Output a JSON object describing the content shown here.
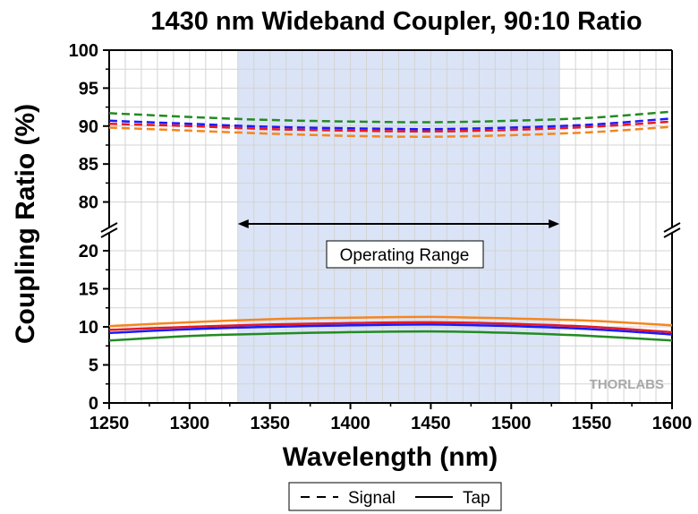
{
  "chart_data": {
    "type": "line",
    "title": "1430 nm Wideband Coupler, 90:10 Ratio",
    "xlabel": "Wavelength (nm)",
    "ylabel": "Coupling Ratio (%)",
    "xlim": [
      1250,
      1600
    ],
    "x_ticks": [
      1250,
      1300,
      1350,
      1400,
      1450,
      1500,
      1550,
      1600
    ],
    "y_ticks_upper": [
      80,
      85,
      90,
      95,
      100
    ],
    "y_ticks_lower": [
      0,
      5,
      10,
      15,
      20
    ],
    "ylim_upper": [
      77,
      100
    ],
    "ylim_lower": [
      0,
      22
    ],
    "axis_break": true,
    "grid": true,
    "highlight": {
      "x_range": [
        1330,
        1530
      ],
      "color": "#dbe4f6",
      "label": "Operating Range"
    },
    "x": [
      1250,
      1300,
      1350,
      1400,
      1450,
      1500,
      1550,
      1600
    ],
    "series": [
      {
        "group": "Signal",
        "style": "dashed",
        "color": "#228b22",
        "values": [
          91.7,
          91.2,
          90.8,
          90.6,
          90.5,
          90.7,
          91.1,
          91.9
        ]
      },
      {
        "group": "Signal",
        "style": "dashed",
        "color": "#1a1aff",
        "values": [
          90.7,
          90.3,
          89.9,
          89.7,
          89.6,
          89.8,
          90.2,
          91.0
        ]
      },
      {
        "group": "Signal",
        "style": "dashed",
        "color": "#e8191f",
        "values": [
          90.3,
          90.0,
          89.6,
          89.4,
          89.3,
          89.5,
          89.9,
          90.6
        ]
      },
      {
        "group": "Signal",
        "style": "dashed",
        "color": "#f5861f",
        "values": [
          89.8,
          89.4,
          89.0,
          88.7,
          88.6,
          88.8,
          89.2,
          89.9
        ]
      },
      {
        "group": "Tap",
        "style": "solid",
        "color": "#f5861f",
        "values": [
          10.1,
          10.6,
          11.0,
          11.2,
          11.3,
          11.1,
          10.8,
          10.2
        ]
      },
      {
        "group": "Tap",
        "style": "solid",
        "color": "#e8191f",
        "values": [
          9.6,
          10.0,
          10.3,
          10.5,
          10.6,
          10.4,
          10.0,
          9.3
        ]
      },
      {
        "group": "Tap",
        "style": "solid",
        "color": "#1a1aff",
        "values": [
          9.2,
          9.7,
          10.0,
          10.2,
          10.3,
          10.1,
          9.7,
          9.0
        ]
      },
      {
        "group": "Tap",
        "style": "solid",
        "color": "#228b22",
        "values": [
          8.2,
          8.8,
          9.1,
          9.3,
          9.4,
          9.2,
          8.8,
          8.2
        ]
      }
    ],
    "legend": {
      "position": "bottom",
      "entries": [
        {
          "label": "Signal",
          "style": "dashed"
        },
        {
          "label": "Tap",
          "style": "solid"
        }
      ]
    },
    "watermark": "THORLABS"
  }
}
